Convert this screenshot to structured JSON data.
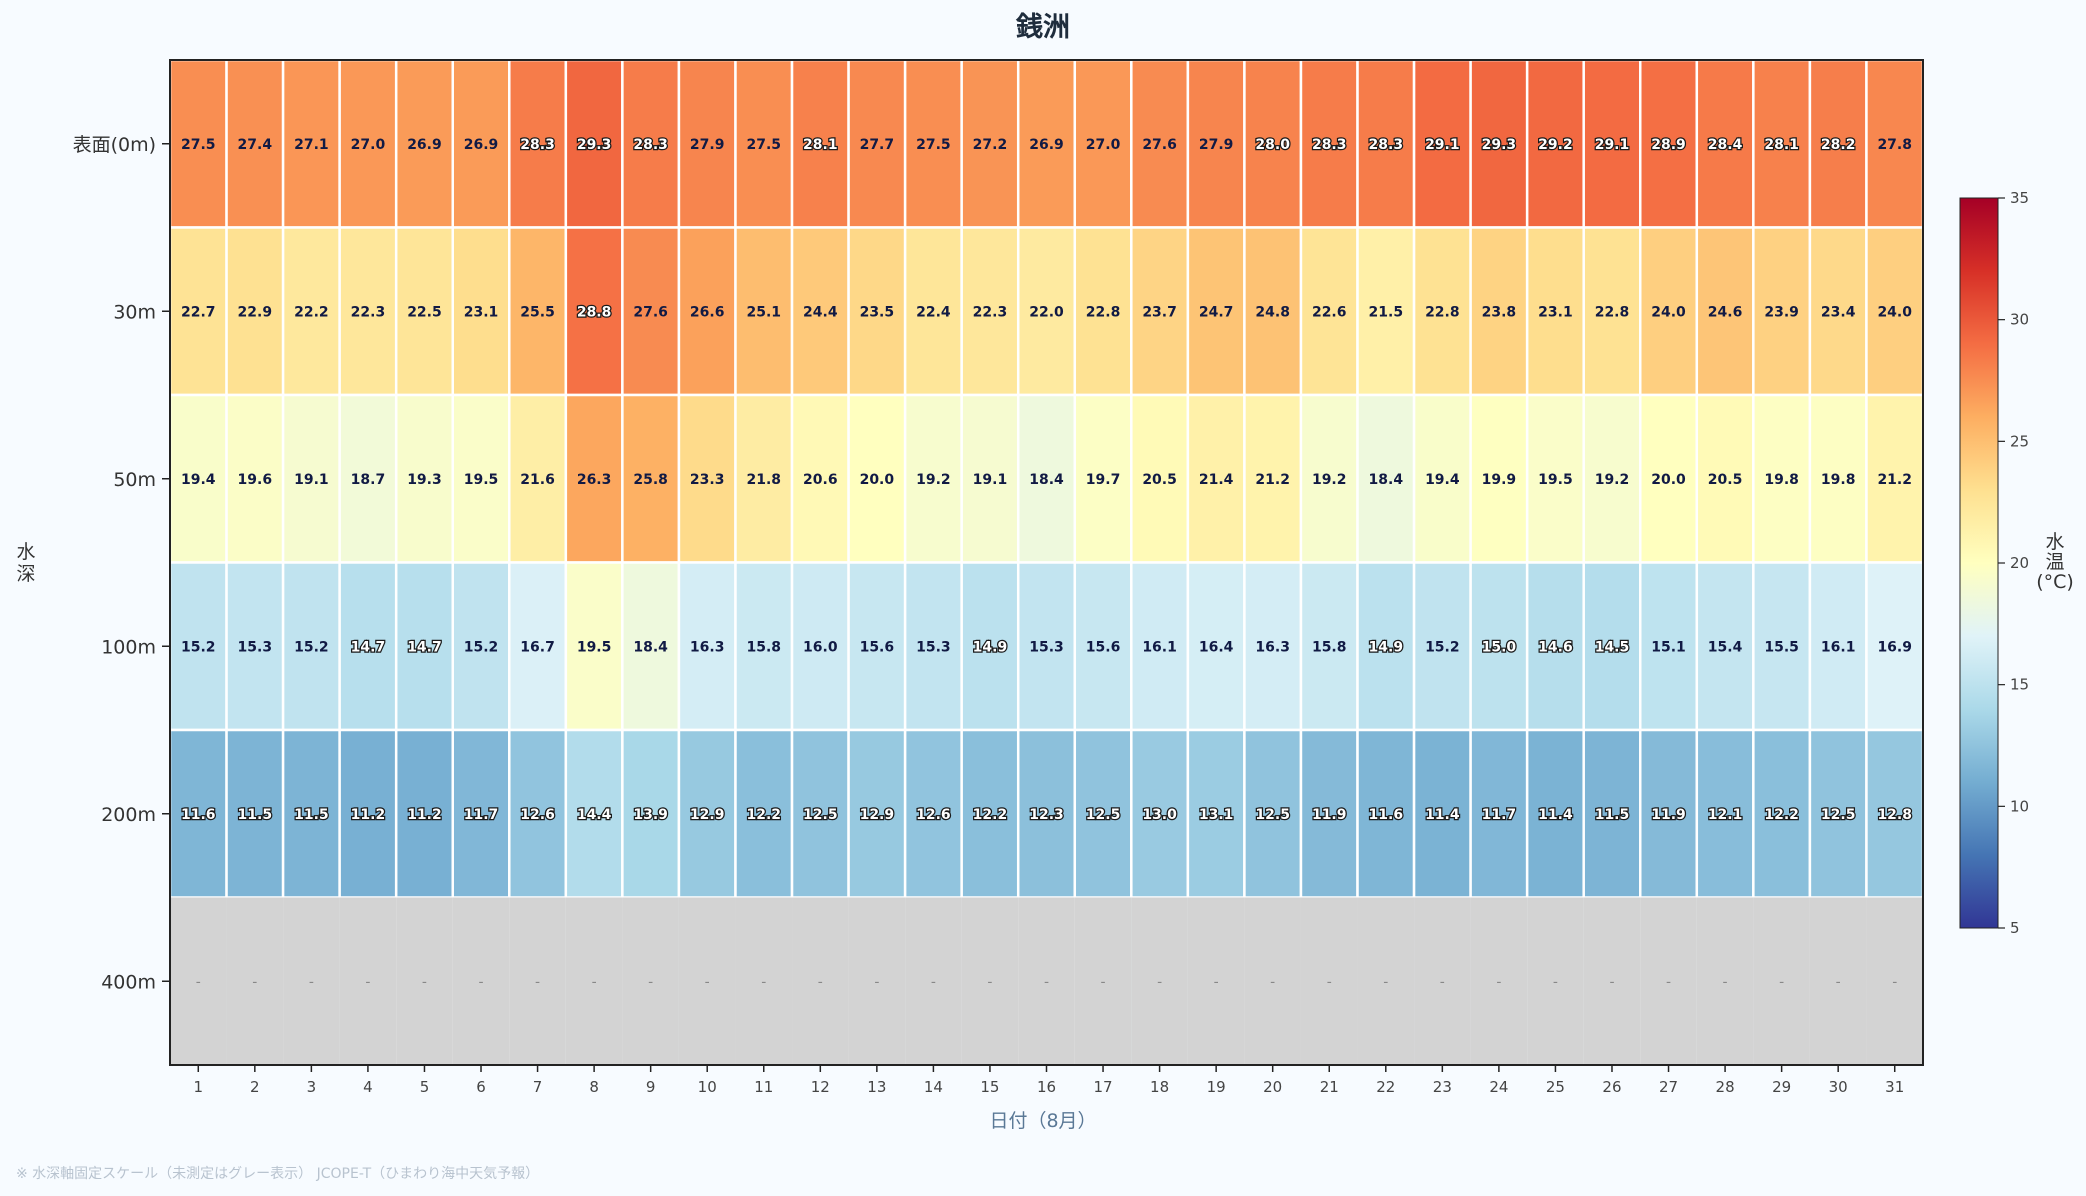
{
  "chart_data": {
    "type": "heatmap",
    "title": "銭洲",
    "xlabel": "日付（8月）",
    "ylabel": "水深",
    "x": [
      "1",
      "2",
      "3",
      "4",
      "5",
      "6",
      "7",
      "8",
      "9",
      "10",
      "11",
      "12",
      "13",
      "14",
      "15",
      "16",
      "17",
      "18",
      "19",
      "20",
      "21",
      "22",
      "23",
      "24",
      "25",
      "26",
      "27",
      "28",
      "29",
      "30",
      "31"
    ],
    "y": [
      "表面(0m)",
      "30m",
      "50m",
      "100m",
      "200m",
      "400m"
    ],
    "values": [
      [
        27.5,
        27.4,
        27.1,
        27.0,
        26.9,
        26.9,
        28.3,
        29.3,
        28.3,
        27.9,
        27.5,
        28.1,
        27.7,
        27.5,
        27.2,
        26.9,
        27.0,
        27.6,
        27.9,
        28.0,
        28.3,
        28.3,
        29.1,
        29.3,
        29.2,
        29.1,
        28.9,
        28.4,
        28.1,
        28.2,
        27.8
      ],
      [
        22.7,
        22.9,
        22.2,
        22.3,
        22.5,
        23.1,
        25.5,
        28.8,
        27.6,
        26.6,
        25.1,
        24.4,
        23.5,
        22.4,
        22.3,
        22.0,
        22.8,
        23.7,
        24.7,
        24.8,
        22.6,
        21.5,
        22.8,
        23.8,
        23.1,
        22.8,
        24.0,
        24.6,
        23.9,
        23.4,
        24.0
      ],
      [
        19.4,
        19.6,
        19.1,
        18.7,
        19.3,
        19.5,
        21.6,
        26.3,
        25.8,
        23.3,
        21.8,
        20.6,
        20.0,
        19.2,
        19.1,
        18.4,
        19.7,
        20.5,
        21.4,
        21.2,
        19.2,
        18.4,
        19.4,
        19.9,
        19.5,
        19.2,
        20.0,
        20.5,
        19.8,
        19.8,
        21.2
      ],
      [
        15.2,
        15.3,
        15.2,
        14.7,
        14.7,
        15.2,
        16.7,
        19.5,
        18.4,
        16.3,
        15.8,
        16.0,
        15.6,
        15.3,
        14.9,
        15.3,
        15.6,
        16.1,
        16.4,
        16.3,
        15.8,
        14.9,
        15.2,
        15.0,
        14.6,
        14.5,
        15.1,
        15.4,
        15.5,
        16.1,
        16.9
      ],
      [
        11.6,
        11.5,
        11.5,
        11.2,
        11.2,
        11.7,
        12.6,
        14.4,
        13.9,
        12.9,
        12.2,
        12.5,
        12.9,
        12.6,
        12.2,
        12.3,
        12.5,
        13.0,
        13.1,
        12.5,
        11.9,
        11.6,
        11.4,
        11.7,
        11.4,
        11.5,
        11.9,
        12.1,
        12.2,
        12.5,
        12.8
      ],
      [
        null,
        null,
        null,
        null,
        null,
        null,
        null,
        null,
        null,
        null,
        null,
        null,
        null,
        null,
        null,
        null,
        null,
        null,
        null,
        null,
        null,
        null,
        null,
        null,
        null,
        null,
        null,
        null,
        null,
        null,
        null
      ]
    ],
    "missing_label": "-",
    "missing_color": "#d3d3d3",
    "colormap": "RdYlBu_r",
    "vmin": 5,
    "vmax": 35,
    "colorbar": {
      "label": "水温(°C)",
      "ticks": [
        5,
        10,
        15,
        20,
        25,
        30,
        35
      ]
    }
  },
  "footnote": "※ 水深軸固定スケール（未測定はグレー表示） JCOPE-T（ひまわり海中天気予報）"
}
